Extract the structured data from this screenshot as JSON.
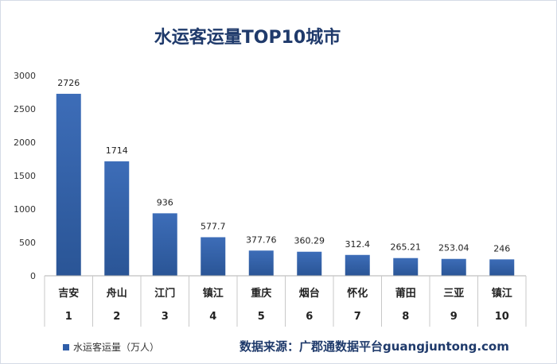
{
  "chart_data": {
    "type": "bar",
    "title": "水运客运量TOP10城市",
    "categories": [
      "吉安",
      "舟山",
      "江门",
      "镇江",
      "重庆",
      "烟台",
      "怀化",
      "莆田",
      "三亚",
      "镇江"
    ],
    "ranks": [
      "1",
      "2",
      "3",
      "4",
      "5",
      "6",
      "7",
      "8",
      "9",
      "10"
    ],
    "series": [
      {
        "name": "水运客运量（万人）",
        "values": [
          2726,
          1714,
          936,
          577.7,
          377.76,
          360.29,
          312.4,
          265.21,
          253.04,
          246
        ]
      }
    ],
    "value_labels": [
      "2726",
      "1714",
      "936",
      "577.7",
      "377.76",
      "360.29",
      "312.4",
      "265.21",
      "253.04",
      "246"
    ],
    "yticks": [
      "0",
      "500",
      "1000",
      "1500",
      "2000",
      "2500",
      "3000"
    ],
    "ylim": [
      0,
      3000
    ],
    "xlabel": "",
    "ylabel": "",
    "grid": false,
    "legend_position": "bottom-left",
    "bar_color_top": "#3d6db8",
    "bar_color_bottom": "#2a5596"
  },
  "source_text": "数据来源：广郡通数据平台guangjuntong.com"
}
